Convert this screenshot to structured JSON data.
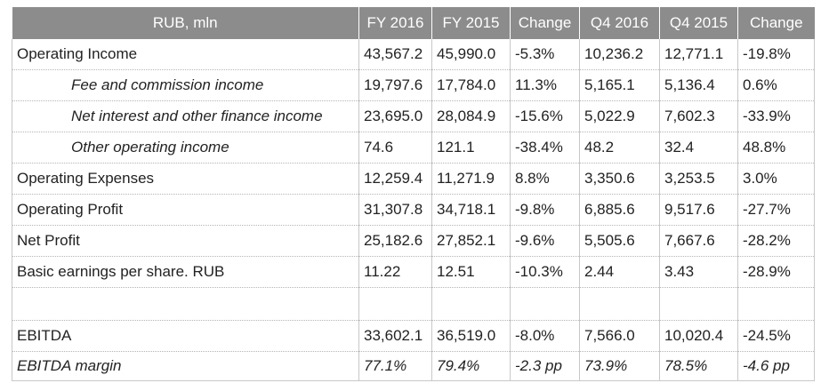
{
  "table": {
    "headers": [
      "RUB, mln",
      "FY 2016",
      "FY 2015",
      "Change",
      "Q4 2016",
      "Q4 2015",
      "Change"
    ],
    "rows": [
      {
        "label": "Operating Income",
        "values": [
          "43,567.2",
          "45,990.0",
          "-5.3%",
          "10,236.2",
          "12,771.1",
          "-19.8%"
        ],
        "style": "normal"
      },
      {
        "label": "Fee and commission income",
        "values": [
          "19,797.6",
          "17,784.0",
          "11.3%",
          "5,165.1",
          "5,136.4",
          "0.6%"
        ],
        "style": "sub"
      },
      {
        "label": "Net interest and other finance income",
        "values": [
          "23,695.0",
          "28,084.9",
          "-15.6%",
          "5,022.9",
          "7,602.3",
          "-33.9%"
        ],
        "style": "sub"
      },
      {
        "label": "Other operating income",
        "values": [
          "74.6",
          "121.1",
          "-38.4%",
          "48.2",
          "32.4",
          "48.8%"
        ],
        "style": "sub"
      },
      {
        "label": "Operating Expenses",
        "values": [
          "12,259.4",
          "11,271.9",
          "8.8%",
          "3,350.6",
          "3,253.5",
          "3.0%"
        ],
        "style": "normal"
      },
      {
        "label": "Operating Profit",
        "values": [
          "31,307.8",
          "34,718.1",
          "-9.8%",
          "6,885.6",
          "9,517.6",
          "-27.7%"
        ],
        "style": "normal"
      },
      {
        "label": "Net Profit",
        "values": [
          "25,182.6",
          "27,852.1",
          "-9.6%",
          "5,505.6",
          "7,667.6",
          "-28.2%"
        ],
        "style": "normal"
      },
      {
        "label": "Basic earnings per share. RUB",
        "values": [
          "11.22",
          "12.51",
          "-10.3%",
          "2.44",
          "3.43",
          "-28.9%"
        ],
        "style": "normal"
      },
      {
        "label": "",
        "values": [
          "",
          "",
          "",
          "",
          "",
          ""
        ],
        "style": "blank"
      },
      {
        "label": "EBITDA",
        "values": [
          "33,602.1",
          "36,519.0",
          "-8.0%",
          "7,566.0",
          "10,020.4",
          "-24.5%"
        ],
        "style": "normal"
      },
      {
        "label": "EBITDA margin",
        "values": [
          "77.1%",
          "79.4%",
          "-2.3 pp",
          "73.9%",
          "78.5%",
          "-4.6 pp"
        ],
        "style": "it"
      }
    ]
  }
}
